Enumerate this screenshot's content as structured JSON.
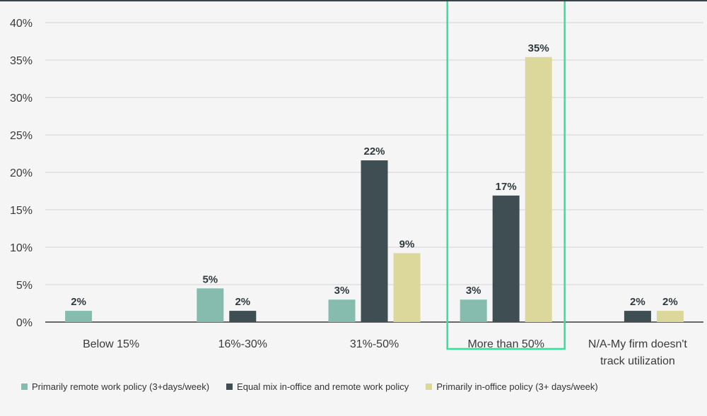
{
  "chart_data": {
    "type": "bar",
    "categories": [
      "Below 15%",
      "16%-30%",
      "31%-50%",
      "More than 50%",
      "N/A-My firm doesn't track utilization"
    ],
    "category_lines": [
      [
        "Below 15%"
      ],
      [
        "16%-30%"
      ],
      [
        "31%-50%"
      ],
      [
        "More than 50%"
      ],
      [
        "N/A-My firm doesn't",
        "track utilization"
      ]
    ],
    "series": [
      {
        "name": "Primarily remote work policy (3+days/week)",
        "color": "#86bcae",
        "values": [
          1.5,
          4.5,
          3.0,
          3.0,
          null
        ],
        "labels": [
          "2%",
          "5%",
          "3%",
          "3%",
          ""
        ]
      },
      {
        "name": "Equal mix in-office and remote work policy",
        "color": "#3f4e52",
        "values": [
          null,
          1.5,
          21.6,
          16.9,
          1.5
        ],
        "labels": [
          "",
          "2%",
          "22%",
          "17%",
          "2%"
        ]
      },
      {
        "name": "Primarily in-office policy (3+ days/week)",
        "color": "#dcd89c",
        "values": [
          null,
          null,
          9.2,
          35.4,
          1.5
        ],
        "labels": [
          "",
          "",
          "9%",
          "35%",
          "2%"
        ]
      }
    ],
    "ylim": [
      0,
      40
    ],
    "yticks": [
      0,
      5,
      10,
      15,
      20,
      25,
      30,
      35,
      40
    ],
    "ytick_labels": [
      "0%",
      "5%",
      "10%",
      "15%",
      "20%",
      "25%",
      "30%",
      "35%",
      "40%"
    ],
    "grid": true,
    "highlight_category": "More than 50%",
    "highlight_color": "#2ee39a",
    "legend_position": "bottom"
  }
}
